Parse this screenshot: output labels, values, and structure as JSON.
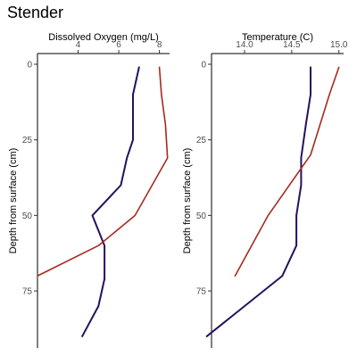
{
  "page_title": "Stender",
  "chart_data": [
    {
      "type": "line",
      "xlabel": "Dissolved Oxygen (mg/L)",
      "ylabel": "Depth from surface (cm)",
      "x_axis_position": "top",
      "y_reversed": true,
      "xlim": [
        2.0,
        8.5
      ],
      "ylim": [
        0,
        93
      ],
      "x_ticks": [
        4,
        6,
        8
      ],
      "y_ticks": [
        0,
        25,
        50,
        75
      ],
      "grid": false,
      "series": [
        {
          "color": "#26115e",
          "x": [
            7.0,
            6.7,
            6.7,
            6.4,
            6.1,
            4.7,
            5.3,
            5.3,
            5.0,
            4.2
          ],
          "y": [
            1,
            10,
            25,
            31,
            40,
            50,
            60,
            71,
            80,
            90
          ]
        },
        {
          "color": "#a52a1e",
          "x": [
            8.0,
            8.1,
            8.3,
            8.4,
            6.8,
            5.0,
            2.0
          ],
          "y": [
            1,
            10,
            20,
            31,
            50,
            60,
            70
          ]
        }
      ]
    },
    {
      "type": "line",
      "xlabel": "Temperature (C)",
      "ylabel": "Depth from surface (cm)",
      "x_axis_position": "top",
      "y_reversed": true,
      "xlim": [
        13.65,
        15.05
      ],
      "ylim": [
        0,
        93
      ],
      "x_ticks": [
        14.0,
        14.5,
        15.0
      ],
      "x_tick_labels": [
        "14.0",
        "14.5",
        "15.0"
      ],
      "y_ticks": [
        0,
        25,
        50,
        75
      ],
      "grid": false,
      "series": [
        {
          "color": "#26115e",
          "x": [
            14.7,
            14.7,
            14.65,
            14.6,
            14.6,
            14.55,
            14.55,
            14.4,
            14.0,
            13.6
          ],
          "y": [
            1,
            10,
            20,
            31,
            40,
            50,
            60,
            70,
            80,
            90
          ]
        },
        {
          "color": "#a52a1e",
          "x": [
            15.0,
            14.9,
            14.7,
            14.25,
            13.9
          ],
          "y": [
            1,
            10,
            30,
            50,
            70
          ]
        }
      ]
    }
  ]
}
